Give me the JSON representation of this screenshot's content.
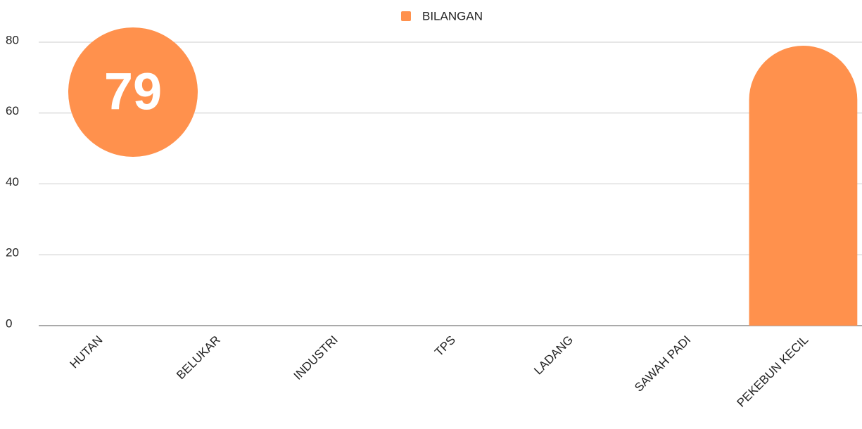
{
  "chart_data": {
    "type": "bar",
    "categories": [
      "HUTAN",
      "BELUKAR",
      "INDUSTRI",
      "TPS",
      "LADANG",
      "SAWAH PADI",
      "PEKEBUN KECIL"
    ],
    "series": [
      {
        "name": "BILANGAN",
        "color": "#ff914d",
        "values": [
          0,
          0,
          0,
          0,
          0,
          0,
          79
        ]
      }
    ],
    "ylim": [
      0,
      80
    ],
    "yticks": [
      0,
      20,
      40,
      60,
      80
    ],
    "grid": true,
    "legend": "top",
    "annotation": "79"
  }
}
